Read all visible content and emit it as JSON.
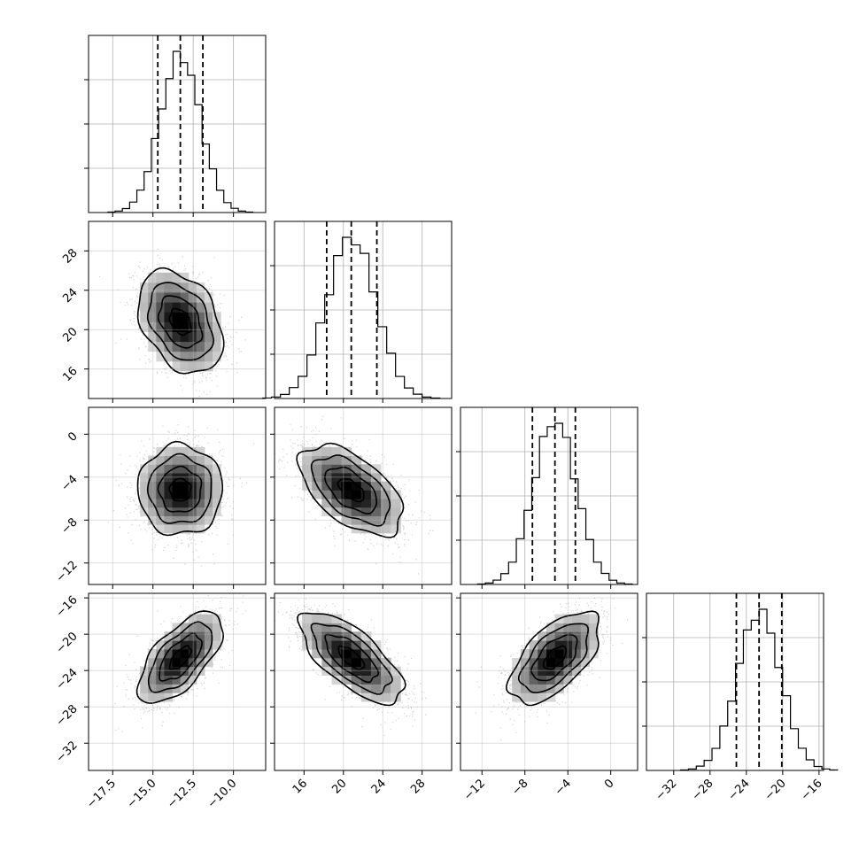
{
  "chart_data": {
    "type": "corner",
    "grid": true,
    "parameters": [
      {
        "index": 0,
        "range": [
          -19.0,
          -8.0
        ],
        "ticks": [
          -17.5,
          -15.0,
          -12.5,
          -10.0
        ],
        "tick_labels": [
          "−17.5",
          "−15.0",
          "−12.5",
          "−10.0"
        ],
        "median": -13.3,
        "sigma": 1.25,
        "quantiles": [
          -14.7,
          -13.3,
          -11.9
        ]
      },
      {
        "index": 1,
        "range": [
          13.0,
          31.0
        ],
        "ticks": [
          16,
          20,
          24,
          28
        ],
        "tick_labels": [
          "16",
          "20",
          "24",
          "28"
        ],
        "median": 20.8,
        "sigma": 2.5,
        "quantiles": [
          18.3,
          20.8,
          23.4
        ]
      },
      {
        "index": 2,
        "range": [
          -14.0,
          2.5
        ],
        "ticks": [
          -12,
          -8,
          -4,
          0
        ],
        "tick_labels": [
          "−12",
          "−8",
          "−4",
          "0"
        ],
        "median": -5.2,
        "sigma": 2.0,
        "quantiles": [
          -7.3,
          -5.2,
          -3.3
        ]
      },
      {
        "index": 3,
        "range": [
          -35.0,
          -15.5
        ],
        "ticks": [
          -32,
          -28,
          -24,
          -20,
          -16
        ],
        "tick_labels": [
          "−32",
          "−28",
          "−24",
          "−20",
          "−16"
        ],
        "median": -22.6,
        "sigma": 2.4,
        "quantiles": [
          -25.1,
          -22.6,
          -20.1
        ]
      }
    ],
    "correlations": {
      "1-0": -0.35,
      "2-0": 0.0,
      "2-1": -0.55,
      "3-0": 0.65,
      "3-1": -0.7,
      "3-2": 0.6
    },
    "histogram_bins": 20,
    "contour_levels_sigma": [
      0.5,
      1.0,
      1.5,
      2.0
    ]
  }
}
